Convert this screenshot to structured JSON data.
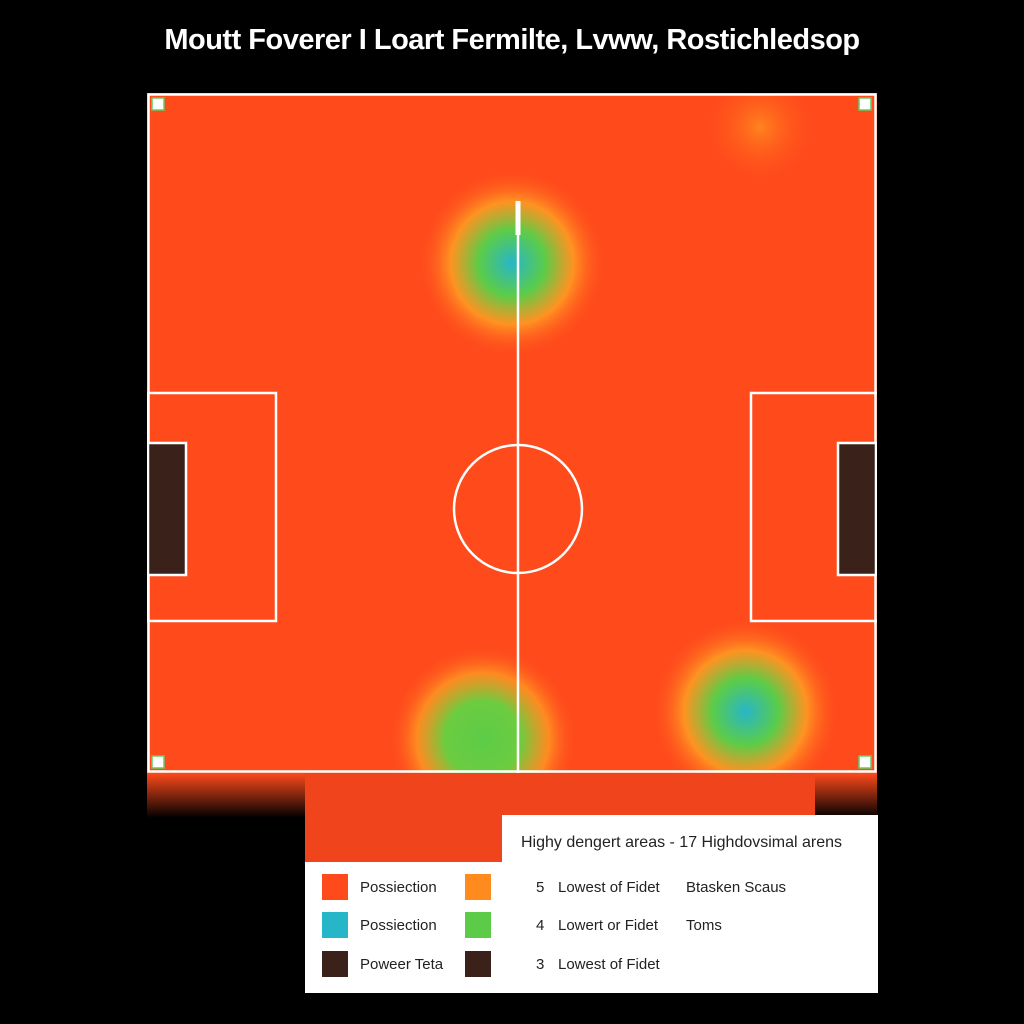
{
  "title": "Moutt Foverer I Loart Fermilte, Lvww, Rostichledsop",
  "colors": {
    "background": "#000000",
    "low": "#ff4a1c",
    "mid": "#ff8a1e",
    "green": "#5ccc48",
    "teal": "#27b6c8",
    "dark": "#3a221a",
    "lines": "#ffffff"
  },
  "chart_data": {
    "type": "heatmap",
    "title": "Moutt Foverer I Loart Fermilte, Lvww, Rostichledsop",
    "hotspots": [
      {
        "x": 50,
        "y": 25,
        "level": "teal"
      },
      {
        "x": 46,
        "y": 95,
        "level": "green"
      },
      {
        "x": 82,
        "y": 91,
        "level": "teal"
      },
      {
        "x": 84,
        "y": 5,
        "level": "orange"
      }
    ],
    "legend": {
      "heading": "Highy dengert areas - 17 Highdovsimal arens",
      "swatches": [
        {
          "label": "Possiection",
          "color": "#ff4a1c",
          "color2": "#ff8a1e"
        },
        {
          "label": "Possiection",
          "color": "#27b6c8",
          "color2": "#5ccc48"
        },
        {
          "label": "Poweer Teta",
          "color": "#3a221a",
          "color2": "#3a221a"
        }
      ],
      "rows": [
        {
          "num": "5",
          "label": "Lowest of Fidet",
          "extra": "Btasken Scaus"
        },
        {
          "num": "4",
          "label": "Lowert or Fidet",
          "extra": "Toms"
        },
        {
          "num": "3",
          "label": "Lowest of Fidet",
          "extra": ""
        }
      ]
    }
  }
}
